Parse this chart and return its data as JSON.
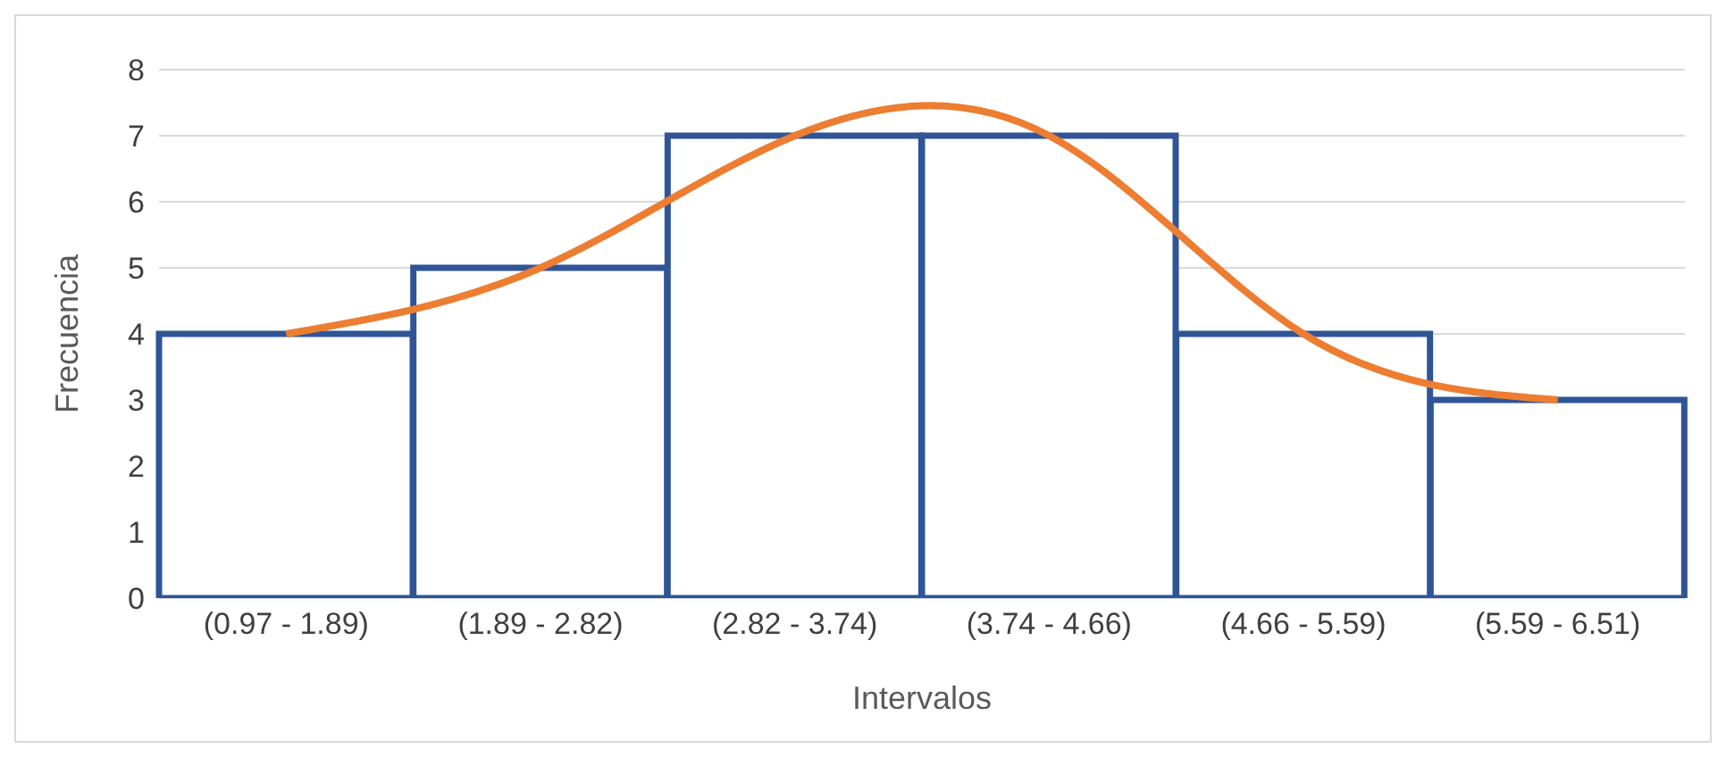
{
  "chart_data": {
    "type": "bar",
    "xlabel": "Intervalos",
    "ylabel": "Frecuencia",
    "categories": [
      "(0.97 - 1.89)",
      "(1.89 - 2.82)",
      "(2.82 - 3.74)",
      "(3.74 - 4.66)",
      "(4.66 - 5.59)",
      "(5.59 - 6.51)"
    ],
    "series": [
      {
        "color": "#2f5597",
        "values": [
          4,
          5,
          7,
          7,
          4,
          3
        ]
      },
      {
        "type": "line",
        "color": "#ed7d31",
        "values": [
          4,
          5,
          7,
          7,
          4,
          3
        ]
      }
    ],
    "ylim": [
      0,
      8
    ],
    "yticks": [
      0,
      1,
      2,
      3,
      4,
      5,
      6,
      7,
      8
    ],
    "grid": "y",
    "legend": false
  }
}
